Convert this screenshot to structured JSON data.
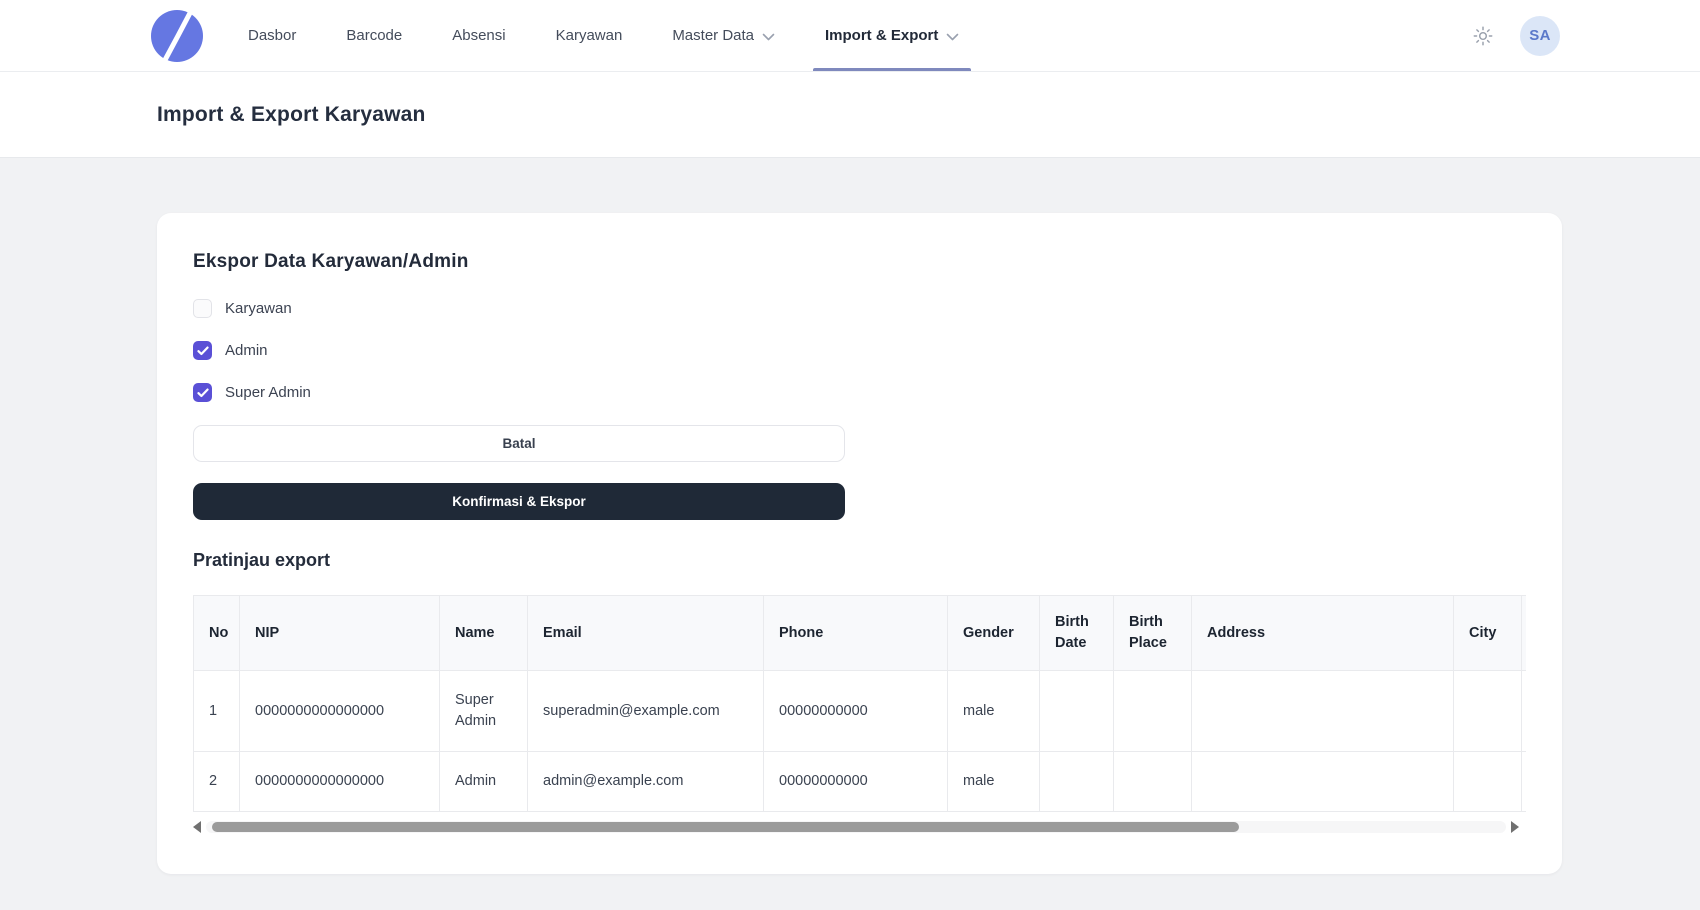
{
  "navbar": {
    "items": [
      {
        "label": "Dasbor",
        "chevron": false,
        "active": false
      },
      {
        "label": "Barcode",
        "chevron": false,
        "active": false
      },
      {
        "label": "Absensi",
        "chevron": false,
        "active": false
      },
      {
        "label": "Karyawan",
        "chevron": false,
        "active": false
      },
      {
        "label": "Master Data",
        "chevron": true,
        "active": false
      },
      {
        "label": "Import & Export",
        "chevron": true,
        "active": true
      }
    ],
    "avatar_initials": "SA"
  },
  "page": {
    "title": "Import & Export Karyawan"
  },
  "export_section": {
    "heading": "Ekspor Data Karyawan/Admin",
    "options": [
      {
        "label": "Karyawan",
        "checked": false
      },
      {
        "label": "Admin",
        "checked": true
      },
      {
        "label": "Super Admin",
        "checked": true
      }
    ],
    "cancel_label": "Batal",
    "confirm_label": "Konfirmasi & Ekspor"
  },
  "preview": {
    "heading": "Pratinjau export",
    "table": {
      "columns": [
        "No",
        "NIP",
        "Name",
        "Email",
        "Phone",
        "Gender",
        "Birth Date",
        "Birth Place",
        "Address",
        "City"
      ],
      "rows": [
        [
          "1",
          "0000000000000000",
          "Super Admin",
          "superadmin@example.com",
          "00000000000",
          "male",
          "",
          "",
          "",
          ""
        ],
        [
          "2",
          "0000000000000000",
          "Admin",
          "admin@example.com",
          "00000000000",
          "male",
          "",
          "",
          "",
          ""
        ]
      ]
    }
  },
  "icons": {
    "theme_toggle": "sun-icon",
    "nav_dropdown": "chevron-down-icon",
    "scroll_left": "arrow-left-icon",
    "scroll_right": "arrow-right-icon"
  },
  "colors": {
    "accent_checkbox": "#5a50d6",
    "dark_button": "#1f2937",
    "logo": "#6577e2",
    "active_tab_underline": "#7f89bd",
    "avatar_bg": "#dbe6f7",
    "avatar_text": "#5b79ca",
    "body_bg": "#f1f2f4"
  }
}
